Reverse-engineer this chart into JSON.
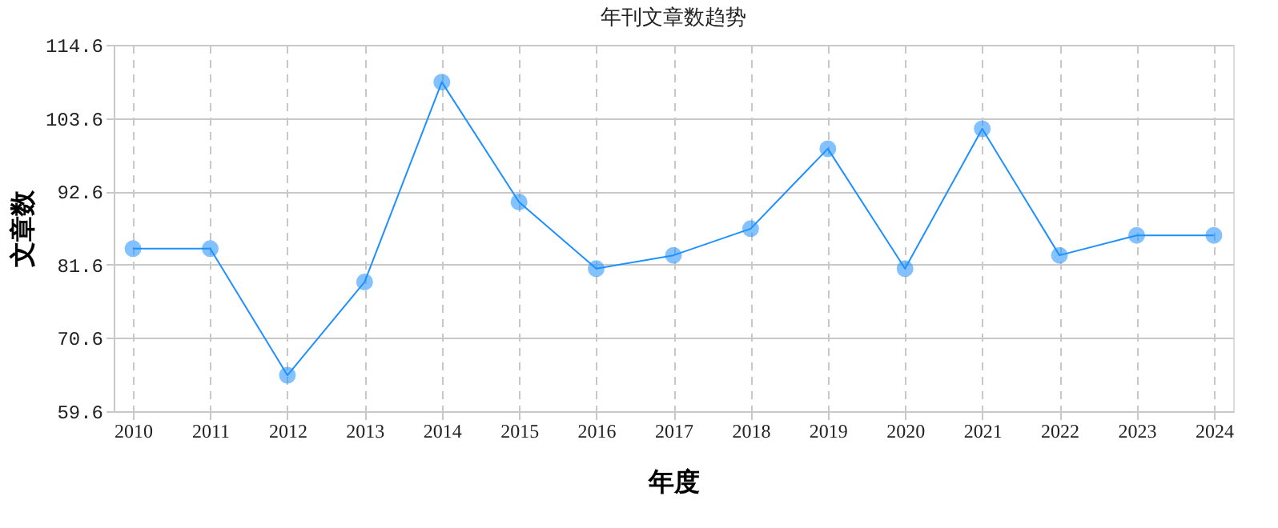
{
  "chart_data": {
    "type": "line",
    "title": "年刊文章数趋势",
    "xlabel": "年度",
    "ylabel": "文章数",
    "categories": [
      "2010",
      "2011",
      "2012",
      "2013",
      "2014",
      "2015",
      "2016",
      "2017",
      "2018",
      "2019",
      "2020",
      "2021",
      "2022",
      "2023",
      "2024"
    ],
    "series": [
      {
        "color": "#1e90ff",
        "values": [
          84,
          84,
          65,
          79,
          109,
          91,
          81,
          83,
          87,
          99,
          81,
          102,
          83,
          86,
          86
        ]
      }
    ],
    "ylim": [
      59.6,
      114.6
    ],
    "yticks": [
      59.6,
      70.6,
      81.6,
      92.6,
      103.6,
      114.6
    ],
    "grid": true,
    "marker": "circle",
    "line_style": "solid"
  }
}
